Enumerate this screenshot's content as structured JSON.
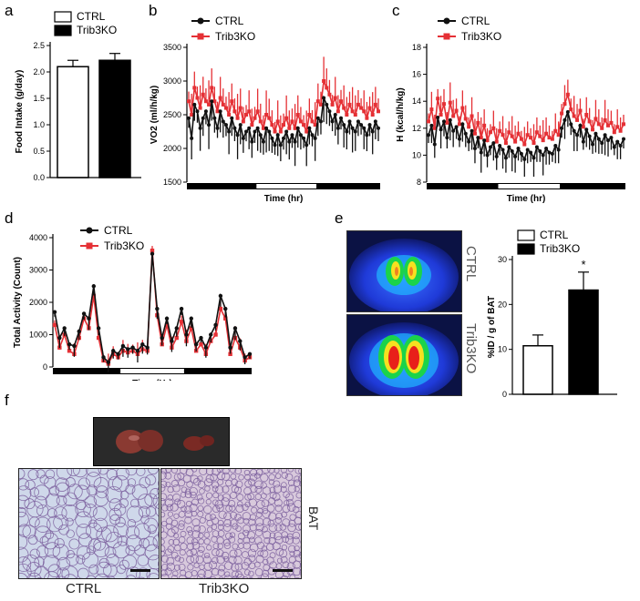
{
  "panels": {
    "a": "a",
    "b": "b",
    "c": "c",
    "d": "d",
    "e": "e",
    "f": "f"
  },
  "colors": {
    "ctrl": "#111111",
    "ko": "#e53035",
    "ctrlBar": "#ffffff",
    "koBar": "#000000"
  },
  "chart_data": [
    {
      "id": "a",
      "type": "bar",
      "ylabel": "Food Intake (g/day)",
      "ticks": [
        "0.0",
        "0.5",
        "1.0",
        "1.5",
        "2.0",
        "2.5"
      ],
      "ylim": [
        0,
        2.5
      ],
      "legend": [
        "CTRL",
        "Trib3KO"
      ],
      "categories": [
        "CTRL",
        "Trib3KO"
      ],
      "values": [
        2.1,
        2.22
      ],
      "errors": [
        0.12,
        0.13
      ]
    },
    {
      "id": "b",
      "type": "line",
      "ylabel": "VO2 (ml/h/kg)",
      "xlabel": "Time (hr)",
      "ticks": [
        "1500",
        "2000",
        "2500",
        "3000",
        "3500"
      ],
      "ylim": [
        1500,
        3500
      ],
      "legend": [
        "CTRL",
        "Trib3KO"
      ],
      "series": [
        {
          "name": "CTRL",
          "values": [
            2450,
            2150,
            2650,
            2550,
            2300,
            2450,
            2550,
            2350,
            2700,
            2450,
            2300,
            2550,
            2400,
            2350,
            2250,
            2450,
            2300,
            2200,
            2350,
            2150,
            2250,
            2300,
            2100,
            2250,
            2300,
            2200,
            2100,
            2300,
            2250,
            2150,
            2050,
            2200,
            2050,
            2150,
            2250,
            2100,
            2200,
            2100,
            2300,
            2200,
            2150,
            2050,
            2300,
            2200,
            2150,
            2450,
            2400,
            2750,
            2650,
            2550,
            2400,
            2500,
            2300,
            2450,
            2350,
            2250,
            2400,
            2300,
            2250,
            2400,
            2350,
            2300,
            2200,
            2350,
            2250,
            2400,
            2300
          ]
        },
        {
          "name": "Trib3KO",
          "values": [
            2700,
            2500,
            2900,
            2750,
            2600,
            2800,
            2700,
            2650,
            2900,
            2700,
            2550,
            2750,
            2650,
            2600,
            2500,
            2700,
            2550,
            2450,
            2600,
            2400,
            2500,
            2550,
            2350,
            2450,
            2550,
            2400,
            2300,
            2500,
            2450,
            2350,
            2250,
            2400,
            2250,
            2350,
            2450,
            2300,
            2400,
            2300,
            2500,
            2400,
            2350,
            2250,
            2500,
            2400,
            2350,
            2700,
            2650,
            3000,
            2900,
            2800,
            2650,
            2750,
            2550,
            2700,
            2600,
            2500,
            2650,
            2550,
            2500,
            2650,
            2600,
            2550,
            2450,
            2600,
            2500,
            2650,
            2550
          ]
        }
      ]
    },
    {
      "id": "c",
      "type": "line",
      "ylabel": "H (kcal/h/kg)",
      "xlabel": "Time (hr)",
      "ticks": [
        "8",
        "10",
        "12",
        "14",
        "16",
        "18"
      ],
      "ylim": [
        8,
        18
      ],
      "legend": [
        "CTRL",
        "Trib3KO"
      ],
      "series": [
        {
          "name": "CTRL",
          "values": [
            11.5,
            12.2,
            10.8,
            12.8,
            11.9,
            12.5,
            11.3,
            12.6,
            11.8,
            12.1,
            11.2,
            12.3,
            11.6,
            11.0,
            11.8,
            10.5,
            11.3,
            10.2,
            11.1,
            10.0,
            10.6,
            10.9,
            9.9,
            10.7,
            10.4,
            9.8,
            10.6,
            10.3,
            9.9,
            10.5,
            10.1,
            9.7,
            10.4,
            10.2,
            9.8,
            10.6,
            10.3,
            10.0,
            10.5,
            10.2,
            10.1,
            10.7,
            10.4,
            12.0,
            12.6,
            13.2,
            12.3,
            11.8,
            11.5,
            12.2,
            11.0,
            11.9,
            11.4,
            10.8,
            11.6,
            11.2,
            10.9,
            11.5,
            11.1,
            11.3,
            10.6,
            11.0,
            10.7,
            11.2
          ]
        },
        {
          "name": "Trib3KO",
          "values": [
            12.5,
            13.4,
            12.0,
            14.2,
            13.0,
            13.8,
            12.4,
            13.9,
            12.9,
            13.3,
            12.3,
            13.5,
            12.7,
            12.1,
            12.9,
            11.6,
            12.4,
            11.3,
            12.2,
            11.1,
            11.7,
            12.0,
            11.0,
            11.8,
            11.5,
            10.9,
            11.7,
            11.4,
            11.0,
            11.6,
            11.2,
            10.8,
            11.5,
            11.3,
            10.9,
            11.7,
            11.4,
            11.1,
            11.6,
            11.3,
            11.2,
            11.8,
            11.5,
            13.1,
            13.8,
            14.5,
            13.4,
            12.9,
            12.6,
            13.3,
            12.1,
            13.0,
            12.5,
            11.9,
            12.7,
            12.3,
            12.0,
            12.6,
            12.2,
            12.4,
            11.7,
            12.1,
            11.8,
            12.3
          ]
        }
      ]
    },
    {
      "id": "d",
      "type": "line",
      "ylabel": "Total Activity (Count)",
      "xlabel": "Time (Hr)",
      "ticks": [
        "0",
        "1000",
        "2000",
        "3000",
        "4000"
      ],
      "ylim": [
        0,
        4000
      ],
      "legend": [
        "CTRL",
        "Trib3KO"
      ],
      "series": [
        {
          "name": "CTRL",
          "values": [
            1700,
            900,
            1200,
            700,
            650,
            1100,
            1650,
            1500,
            2500,
            1200,
            300,
            150,
            500,
            400,
            650,
            550,
            600,
            500,
            700,
            600,
            3500,
            1800,
            900,
            1500,
            800,
            1200,
            1800,
            1000,
            1500,
            700,
            900,
            600,
            1000,
            1300,
            2200,
            1800,
            600,
            1200,
            800,
            300,
            400
          ]
        },
        {
          "name": "Trib3KO",
          "values": [
            1300,
            600,
            1000,
            500,
            400,
            900,
            1500,
            1200,
            2200,
            900,
            200,
            100,
            400,
            300,
            500,
            450,
            500,
            400,
            550,
            500,
            3600,
            1600,
            700,
            1300,
            600,
            900,
            1400,
            800,
            1200,
            500,
            700,
            400,
            800,
            1000,
            1800,
            1500,
            400,
            900,
            600,
            200,
            300
          ]
        }
      ]
    },
    {
      "id": "e",
      "type": "bar",
      "ylabel": "%ID / g of BAT",
      "ticks": [
        "0",
        "10",
        "20",
        "30"
      ],
      "ylim": [
        0,
        30
      ],
      "legend": [
        "CTRL",
        "Trib3KO"
      ],
      "categories": [
        "CTRL",
        "Trib3KO"
      ],
      "values": [
        10.8,
        23.2
      ],
      "errors": [
        2.4,
        4.0
      ],
      "annotation": "*"
    }
  ],
  "scan": {
    "ctrl_label": "CTRL",
    "ko_label": "Trib3KO"
  },
  "histology": {
    "side_label": "BAT",
    "captions": [
      "CTRL",
      "Trib3KO"
    ]
  }
}
